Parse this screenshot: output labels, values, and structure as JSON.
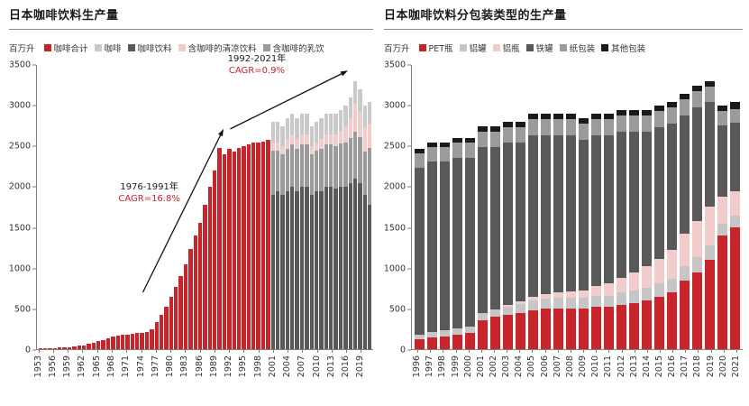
{
  "left_chart": {
    "title": "日本咖啡饮料生产量",
    "unit": "百万升",
    "legend": [
      {
        "label": "咖啡合计",
        "color": "#c7242c"
      },
      {
        "label": "咖啡",
        "color": "#c9c9c9"
      },
      {
        "label": "咖啡饮料",
        "color": "#595959"
      },
      {
        "label": "含咖啡的清凉饮料",
        "color": "#f1ccca"
      },
      {
        "label": "含咖啡的乳饮",
        "color": "#9b9b9b"
      }
    ],
    "annotations": {
      "first": {
        "period": "1976-1991年",
        "cagr": "CAGR=16.8%"
      },
      "second": {
        "period": "1992-2021年",
        "cagr": "CAGR=0.9%"
      }
    }
  },
  "right_chart": {
    "title": "日本咖啡饮料分包装类型的生产量",
    "unit": "百万升",
    "legend": [
      {
        "label": "PET瓶",
        "color": "#c7242c"
      },
      {
        "label": "铝罐",
        "color": "#c6c6c6"
      },
      {
        "label": "铝瓶",
        "color": "#f1ccca"
      },
      {
        "label": "铁罐",
        "color": "#595959"
      },
      {
        "label": "纸包装",
        "color": "#9b9b9b"
      },
      {
        "label": "其他包装",
        "color": "#1a1a1a"
      }
    ]
  },
  "chart_data": [
    {
      "id": "left",
      "type": "bar",
      "stacked": true,
      "title": "日本咖啡饮料生产量",
      "ylabel": "百万升",
      "ylim": [
        0,
        3500
      ],
      "yticks": [
        0,
        500,
        1000,
        1500,
        2000,
        2500,
        3000,
        3500
      ],
      "grid": false,
      "legend_position": "top",
      "categories": [
        1953,
        1954,
        1955,
        1956,
        1957,
        1958,
        1959,
        1960,
        1961,
        1962,
        1963,
        1964,
        1965,
        1966,
        1967,
        1968,
        1969,
        1970,
        1971,
        1972,
        1973,
        1974,
        1975,
        1976,
        1977,
        1978,
        1979,
        1980,
        1981,
        1982,
        1983,
        1984,
        1985,
        1986,
        1987,
        1988,
        1989,
        1990,
        1991,
        1992,
        1993,
        1994,
        1995,
        1996,
        1997,
        1998,
        1999,
        2000,
        2001,
        2002,
        2003,
        2004,
        2005,
        2006,
        2007,
        2008,
        2009,
        2010,
        2011,
        2012,
        2013,
        2014,
        2015,
        2016,
        2017,
        2018,
        2019,
        2020,
        2021
      ],
      "xtick_labels": [
        1953,
        1956,
        1959,
        1962,
        1965,
        1968,
        1971,
        1974,
        1977,
        1980,
        1983,
        1986,
        1989,
        1992,
        1995,
        1998,
        2001,
        2004,
        2007,
        2010,
        2013,
        2016,
        2019
      ],
      "series": [
        {
          "name": "咖啡合计",
          "color": "#c7242c",
          "start": 0,
          "values": [
            10,
            12,
            14,
            16,
            18,
            22,
            26,
            32,
            40,
            50,
            62,
            78,
            95,
            115,
            135,
            152,
            165,
            175,
            182,
            190,
            196,
            202,
            215,
            250,
            330,
            420,
            520,
            640,
            770,
            900,
            1050,
            1230,
            1400,
            1560,
            1780,
            2000,
            2200,
            2480,
            2400,
            2470,
            2430,
            2480,
            2500,
            2520,
            2540,
            2550,
            2560,
            2580
          ]
        },
        {
          "name": "咖啡饮料",
          "color": "#595959",
          "start": 48,
          "values": [
            1900,
            1950,
            1900,
            1950,
            2000,
            1950,
            2000,
            2000,
            1900,
            1950,
            1950,
            2000,
            2000,
            1980,
            2000,
            2000,
            2050,
            2100,
            2050,
            1900,
            1780
          ]
        },
        {
          "name": "含咖啡的乳饮",
          "color": "#9b9b9b",
          "start": 48,
          "values": [
            550,
            500,
            500,
            520,
            520,
            520,
            520,
            520,
            500,
            500,
            520,
            520,
            520,
            520,
            530,
            540,
            550,
            580,
            560,
            530,
            700
          ]
        },
        {
          "name": "含咖啡的清凉饮料",
          "color": "#f1ccca",
          "start": 48,
          "values": [
            100,
            100,
            100,
            120,
            120,
            120,
            120,
            120,
            100,
            100,
            120,
            120,
            120,
            140,
            160,
            200,
            240,
            340,
            320,
            300,
            300
          ]
        },
        {
          "name": "咖啡",
          "color": "#c9c9c9",
          "start": 48,
          "values": [
            250,
            250,
            250,
            260,
            260,
            260,
            260,
            260,
            250,
            250,
            260,
            260,
            260,
            260,
            260,
            260,
            260,
            280,
            270,
            270,
            270
          ]
        }
      ],
      "annotations": [
        {
          "text": "1976-1991年 CAGR=16.8%"
        },
        {
          "text": "1992-2021年 CAGR=0.9%"
        }
      ]
    },
    {
      "id": "right",
      "type": "bar",
      "stacked": true,
      "title": "日本咖啡饮料分包装类型的生产量",
      "ylabel": "百万升",
      "ylim": [
        0,
        3500
      ],
      "yticks": [
        0,
        500,
        1000,
        1500,
        2000,
        2500,
        3000,
        3500
      ],
      "grid": false,
      "legend_position": "top",
      "categories": [
        1996,
        1997,
        1998,
        1999,
        2000,
        2001,
        2002,
        2003,
        2004,
        2005,
        2006,
        2007,
        2008,
        2009,
        2010,
        2011,
        2012,
        2013,
        2014,
        2015,
        2016,
        2017,
        2018,
        2019,
        2020,
        2021
      ],
      "xtick_labels": [
        1996,
        1997,
        1998,
        1999,
        2000,
        2001,
        2002,
        2003,
        2004,
        2005,
        2006,
        2007,
        2008,
        2009,
        2010,
        2011,
        2012,
        2013,
        2014,
        2015,
        2016,
        2017,
        2018,
        2019,
        2020,
        2021
      ],
      "series": [
        {
          "name": "PET瓶",
          "color": "#c7242c",
          "start": 0,
          "values": [
            120,
            150,
            160,
            180,
            200,
            360,
            400,
            420,
            450,
            480,
            500,
            500,
            500,
            500,
            520,
            520,
            550,
            570,
            600,
            650,
            700,
            850,
            950,
            1100,
            1400,
            1500
          ]
        },
        {
          "name": "铝罐",
          "color": "#c6c6c6",
          "start": 0,
          "values": [
            60,
            60,
            70,
            80,
            80,
            80,
            90,
            100,
            110,
            120,
            120,
            130,
            130,
            130,
            140,
            140,
            150,
            150,
            160,
            160,
            170,
            170,
            180,
            180,
            150,
            150
          ]
        },
        {
          "name": "铝瓶",
          "color": "#f1ccca",
          "start": 0,
          "values": [
            0,
            0,
            0,
            0,
            0,
            0,
            0,
            20,
            30,
            50,
            60,
            70,
            80,
            90,
            120,
            150,
            180,
            220,
            260,
            300,
            350,
            400,
            450,
            480,
            330,
            300
          ]
        },
        {
          "name": "铁罐",
          "color": "#595959",
          "start": 0,
          "values": [
            2050,
            2100,
            2080,
            2100,
            2080,
            2050,
            2000,
            2000,
            1950,
            1980,
            1950,
            1930,
            1920,
            1860,
            1850,
            1820,
            1800,
            1740,
            1660,
            1620,
            1560,
            1460,
            1400,
            1280,
            880,
            840
          ]
        },
        {
          "name": "纸包装",
          "color": "#9b9b9b",
          "start": 0,
          "values": [
            180,
            180,
            180,
            180,
            180,
            190,
            190,
            190,
            190,
            200,
            200,
            200,
            200,
            200,
            200,
            200,
            200,
            200,
            200,
            200,
            200,
            200,
            200,
            190,
            170,
            170
          ]
        },
        {
          "name": "其他包装",
          "color": "#1a1a1a",
          "start": 0,
          "values": [
            60,
            60,
            60,
            60,
            60,
            70,
            70,
            70,
            70,
            70,
            70,
            70,
            70,
            70,
            70,
            70,
            70,
            70,
            70,
            70,
            70,
            70,
            70,
            70,
            70,
            80
          ]
        }
      ]
    }
  ]
}
